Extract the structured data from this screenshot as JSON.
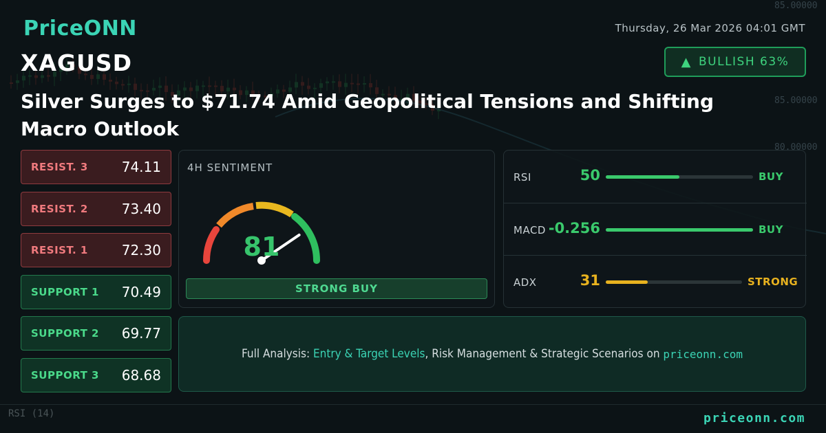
{
  "brand": {
    "logo": "PriceONN"
  },
  "header": {
    "datetime": "Thursday, 26 Mar 2026 04:01 GMT",
    "symbol": "XAGUSD",
    "badge": "BULLISH 63%"
  },
  "headline": "Silver Surges to $71.74 Amid Geopolitical Tensions and Shifting Macro Outlook",
  "levels": [
    {
      "label": "RESIST. 3",
      "value": "74.11",
      "kind": "resistance"
    },
    {
      "label": "RESIST. 2",
      "value": "73.40",
      "kind": "resistance"
    },
    {
      "label": "RESIST. 1",
      "value": "72.30",
      "kind": "resistance"
    },
    {
      "label": "SUPPORT 1",
      "value": "70.49",
      "kind": "support"
    },
    {
      "label": "SUPPORT 2",
      "value": "69.77",
      "kind": "support"
    },
    {
      "label": "SUPPORT 3",
      "value": "68.68",
      "kind": "support"
    }
  ],
  "sentiment": {
    "title": "4H SENTIMENT",
    "score": "81",
    "score_value": 81,
    "verdict": "STRONG BUY"
  },
  "indicators": [
    {
      "name": "RSI",
      "value": "50",
      "level": 0.5,
      "signal": "BUY",
      "color": "#3ac96c"
    },
    {
      "name": "MACD",
      "value": "-0.256",
      "level": 1.0,
      "signal": "BUY",
      "color": "#3ac96c"
    },
    {
      "name": "ADX",
      "value": "31",
      "level": 0.31,
      "signal": "STRONG",
      "color": "#e8b21f"
    }
  ],
  "cta": {
    "prefix": "Full Analysis: ",
    "highlight": "Entry & Target Levels",
    "middle": ", Risk Management & Strategic Scenarios on ",
    "domain": "priceonn.com"
  },
  "background": {
    "price_labels": [
      "85.00000",
      "85.00000",
      "80.00000"
    ],
    "rsi_label": "RSI (14)"
  },
  "footer": {
    "site": "priceonn.com"
  },
  "colors": {
    "accent": "#3bd4b5",
    "bullish": "#3ed37e",
    "resistance": "#f07a7e",
    "support": "#4ad98a"
  }
}
